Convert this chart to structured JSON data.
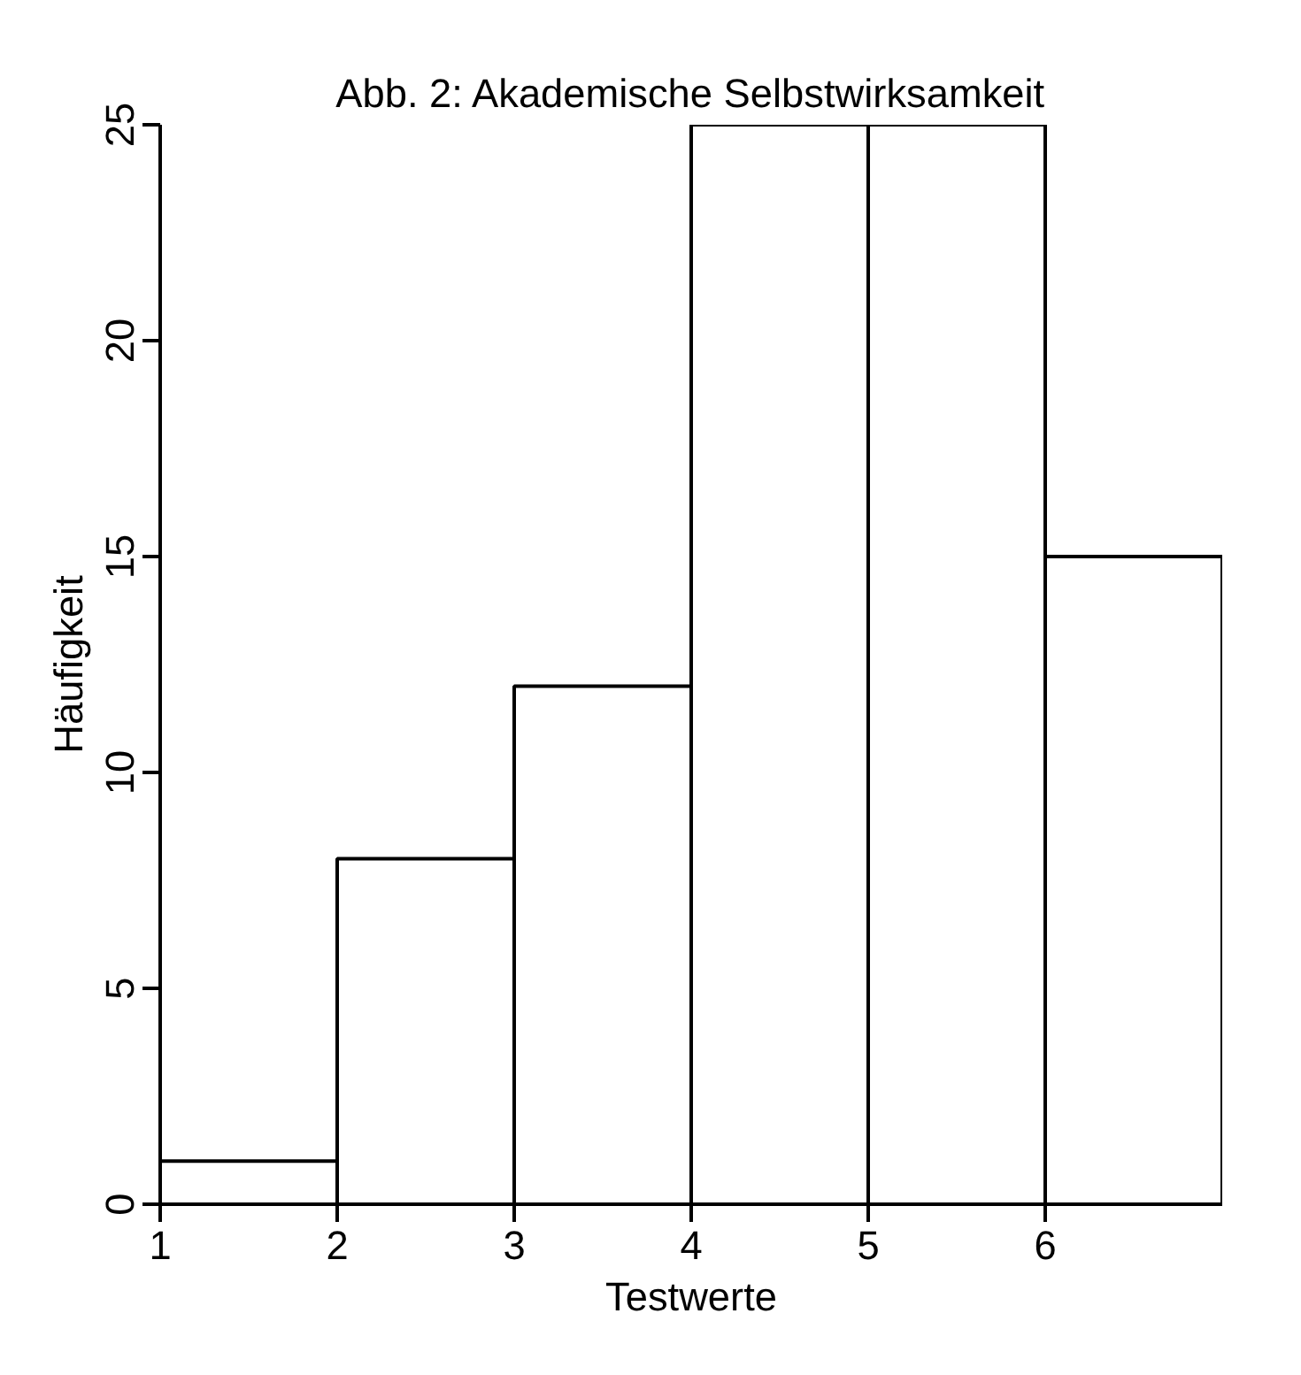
{
  "chart_data": {
    "type": "histogram",
    "title": "Abb. 2: Akademische Selbstwirksamkeit",
    "xlabel": "Testwerte",
    "ylabel": "Häufigkeit",
    "bins": [
      1,
      2,
      3,
      4,
      5,
      6,
      7
    ],
    "values": [
      1,
      8,
      12,
      25,
      25,
      15
    ],
    "color": "#ffffff",
    "xlim": [
      1,
      7
    ],
    "ylim": [
      0,
      25
    ],
    "xticks": [
      1,
      2,
      3,
      4,
      5,
      6
    ],
    "yticks": [
      0,
      5,
      10,
      15,
      20,
      25
    ],
    "grid": false
  }
}
